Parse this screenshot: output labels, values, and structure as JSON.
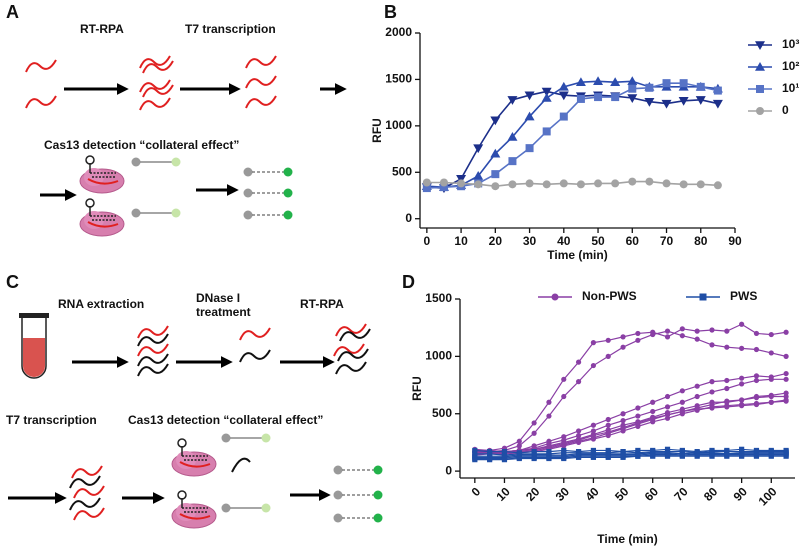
{
  "panels": {
    "a": "A",
    "b": "B",
    "c": "C",
    "d": "D"
  },
  "diagram_a": {
    "steps": [
      "RT-RPA",
      "T7 transcription"
    ],
    "detection": "Cas13 detection “collateral effect”"
  },
  "diagram_c": {
    "steps": [
      "RNA extraction",
      "DNase I treatment",
      "RT-RPA"
    ],
    "steps2": [
      "T7 transcription",
      "Cas13 detection “collateral effect”"
    ]
  },
  "chart_data": [
    {
      "type": "line",
      "xlabel": "Time (min)",
      "ylabel": "RFU",
      "x": [
        0,
        5,
        10,
        15,
        20,
        25,
        30,
        35,
        40,
        45,
        50,
        55,
        60,
        65,
        70,
        75,
        80,
        85
      ],
      "series": [
        {
          "name": "10³",
          "color": "#1c2f8a",
          "marker": "tri-down",
          "values": [
            340,
            330,
            430,
            760,
            1060,
            1280,
            1330,
            1370,
            1330,
            1320,
            1330,
            1320,
            1300,
            1260,
            1240,
            1270,
            1280,
            1240
          ]
        },
        {
          "name": "10²",
          "color": "#2c4cae",
          "marker": "tri-up",
          "values": [
            350,
            340,
            360,
            460,
            700,
            880,
            1100,
            1300,
            1420,
            1470,
            1480,
            1470,
            1480,
            1420,
            1420,
            1420,
            1420,
            1400
          ]
        },
        {
          "name": "10¹",
          "color": "#5773c6",
          "marker": "square",
          "values": [
            330,
            340,
            350,
            380,
            480,
            620,
            760,
            940,
            1100,
            1290,
            1310,
            1310,
            1400,
            1410,
            1460,
            1460,
            1420,
            1380
          ]
        },
        {
          "name": "0",
          "color": "#a3a3a3",
          "marker": "circle",
          "values": [
            390,
            390,
            380,
            370,
            350,
            370,
            380,
            370,
            380,
            370,
            380,
            380,
            400,
            400,
            380,
            370,
            370,
            360
          ]
        }
      ],
      "xlim": [
        -2,
        90
      ],
      "xticks": [
        0,
        10,
        20,
        30,
        40,
        50,
        60,
        70,
        80,
        90
      ],
      "ylim": [
        -100,
        2000
      ],
      "yticks": [
        0,
        500,
        1000,
        1500,
        2000
      ],
      "legend": "right"
    },
    {
      "type": "line",
      "xlabel": "Time (min)",
      "ylabel": "RFU",
      "x": [
        0,
        5,
        10,
        15,
        20,
        25,
        30,
        35,
        40,
        45,
        50,
        55,
        60,
        65,
        70,
        75,
        80,
        85,
        90,
        95,
        100,
        105
      ],
      "series": [
        {
          "name": "Non-PWS",
          "color": "#8a3fa5",
          "marker": "circle",
          "values": [
            [
              180,
              180,
              200,
              260,
              420,
              600,
              800,
              950,
              1120,
              1140,
              1170,
              1200,
              1210,
              1170,
              1240,
              1220,
              1230,
              1220,
              1280,
              1200,
              1190,
              1210
            ],
            [
              170,
              170,
              180,
              220,
              330,
              480,
              650,
              780,
              920,
              1000,
              1080,
              1140,
              1190,
              1220,
              1180,
              1150,
              1100,
              1080,
              1070,
              1060,
              1030,
              1000
            ],
            [
              190,
              180,
              170,
              180,
              220,
              260,
              300,
              350,
              400,
              450,
              500,
              550,
              600,
              650,
              700,
              740,
              780,
              790,
              810,
              830,
              820,
              850
            ],
            [
              170,
              160,
              170,
              180,
              200,
              240,
              270,
              310,
              350,
              400,
              440,
              480,
              520,
              560,
              600,
              650,
              690,
              720,
              760,
              790,
              800,
              800
            ],
            [
              160,
              160,
              170,
              180,
              190,
              220,
              250,
              280,
              320,
              360,
              400,
              430,
              470,
              510,
              540,
              570,
              600,
              600,
              620,
              650,
              660,
              680
            ],
            [
              150,
              150,
              160,
              170,
              180,
              200,
              230,
              260,
              290,
              330,
              370,
              410,
              450,
              490,
              520,
              550,
              580,
              610,
              620,
              640,
              650,
              650
            ],
            [
              140,
              150,
              150,
              160,
              170,
              190,
              220,
              250,
              280,
              310,
              350,
              390,
              430,
              460,
              500,
              530,
              560,
              570,
              580,
              590,
              600,
              610
            ],
            [
              170,
              160,
              170,
              180,
              190,
              210,
              240,
              270,
              310,
              340,
              380,
              420,
              460,
              490,
              520,
              540,
              550,
              560,
              570,
              580,
              600,
              620
            ]
          ]
        },
        {
          "name": "PWS",
          "color": "#1f4ea6",
          "marker": "square",
          "values": [
            [
              180,
              170,
              170,
              160,
              170,
              170,
              180,
              170,
              180,
              180,
              170,
              180,
              180,
              190,
              180,
              170,
              180,
              180,
              190,
              180,
              180,
              180
            ],
            [
              150,
              150,
              140,
              150,
              150,
              150,
              160,
              160,
              160,
              160,
              170,
              160,
              170,
              170,
              170,
              160,
              170,
              170,
              170,
              170,
              170,
              170
            ],
            [
              130,
              130,
              130,
              140,
              140,
              140,
              140,
              150,
              150,
              150,
              150,
              150,
              160,
              160,
              150,
              160,
              160,
              150,
              160,
              160,
              160,
              160
            ],
            [
              120,
              120,
              120,
              130,
              130,
              130,
              130,
              140,
              140,
              140,
              140,
              140,
              150,
              150,
              140,
              150,
              150,
              150,
              150,
              150,
              150,
              150
            ],
            [
              110,
              110,
              110,
              120,
              120,
              120,
              120,
              130,
              130,
              130,
              130,
              130,
              140,
              140,
              140,
              140,
              140,
              140,
              140,
              140,
              140,
              140
            ],
            [
              100,
              100,
              100,
              110,
              110,
              110,
              110,
              120,
              120,
              120,
              120,
              130,
              130,
              130,
              130,
              130,
              130,
              130,
              130,
              130,
              130,
              130
            ]
          ]
        }
      ],
      "xlim": [
        -5,
        108
      ],
      "xticks": [
        0,
        10,
        20,
        30,
        40,
        50,
        60,
        70,
        80,
        90,
        100
      ],
      "ylim": [
        -60,
        1500
      ],
      "yticks": [
        0,
        500,
        1000,
        1500
      ],
      "legend": "top",
      "xtick_rotation": -45
    }
  ]
}
